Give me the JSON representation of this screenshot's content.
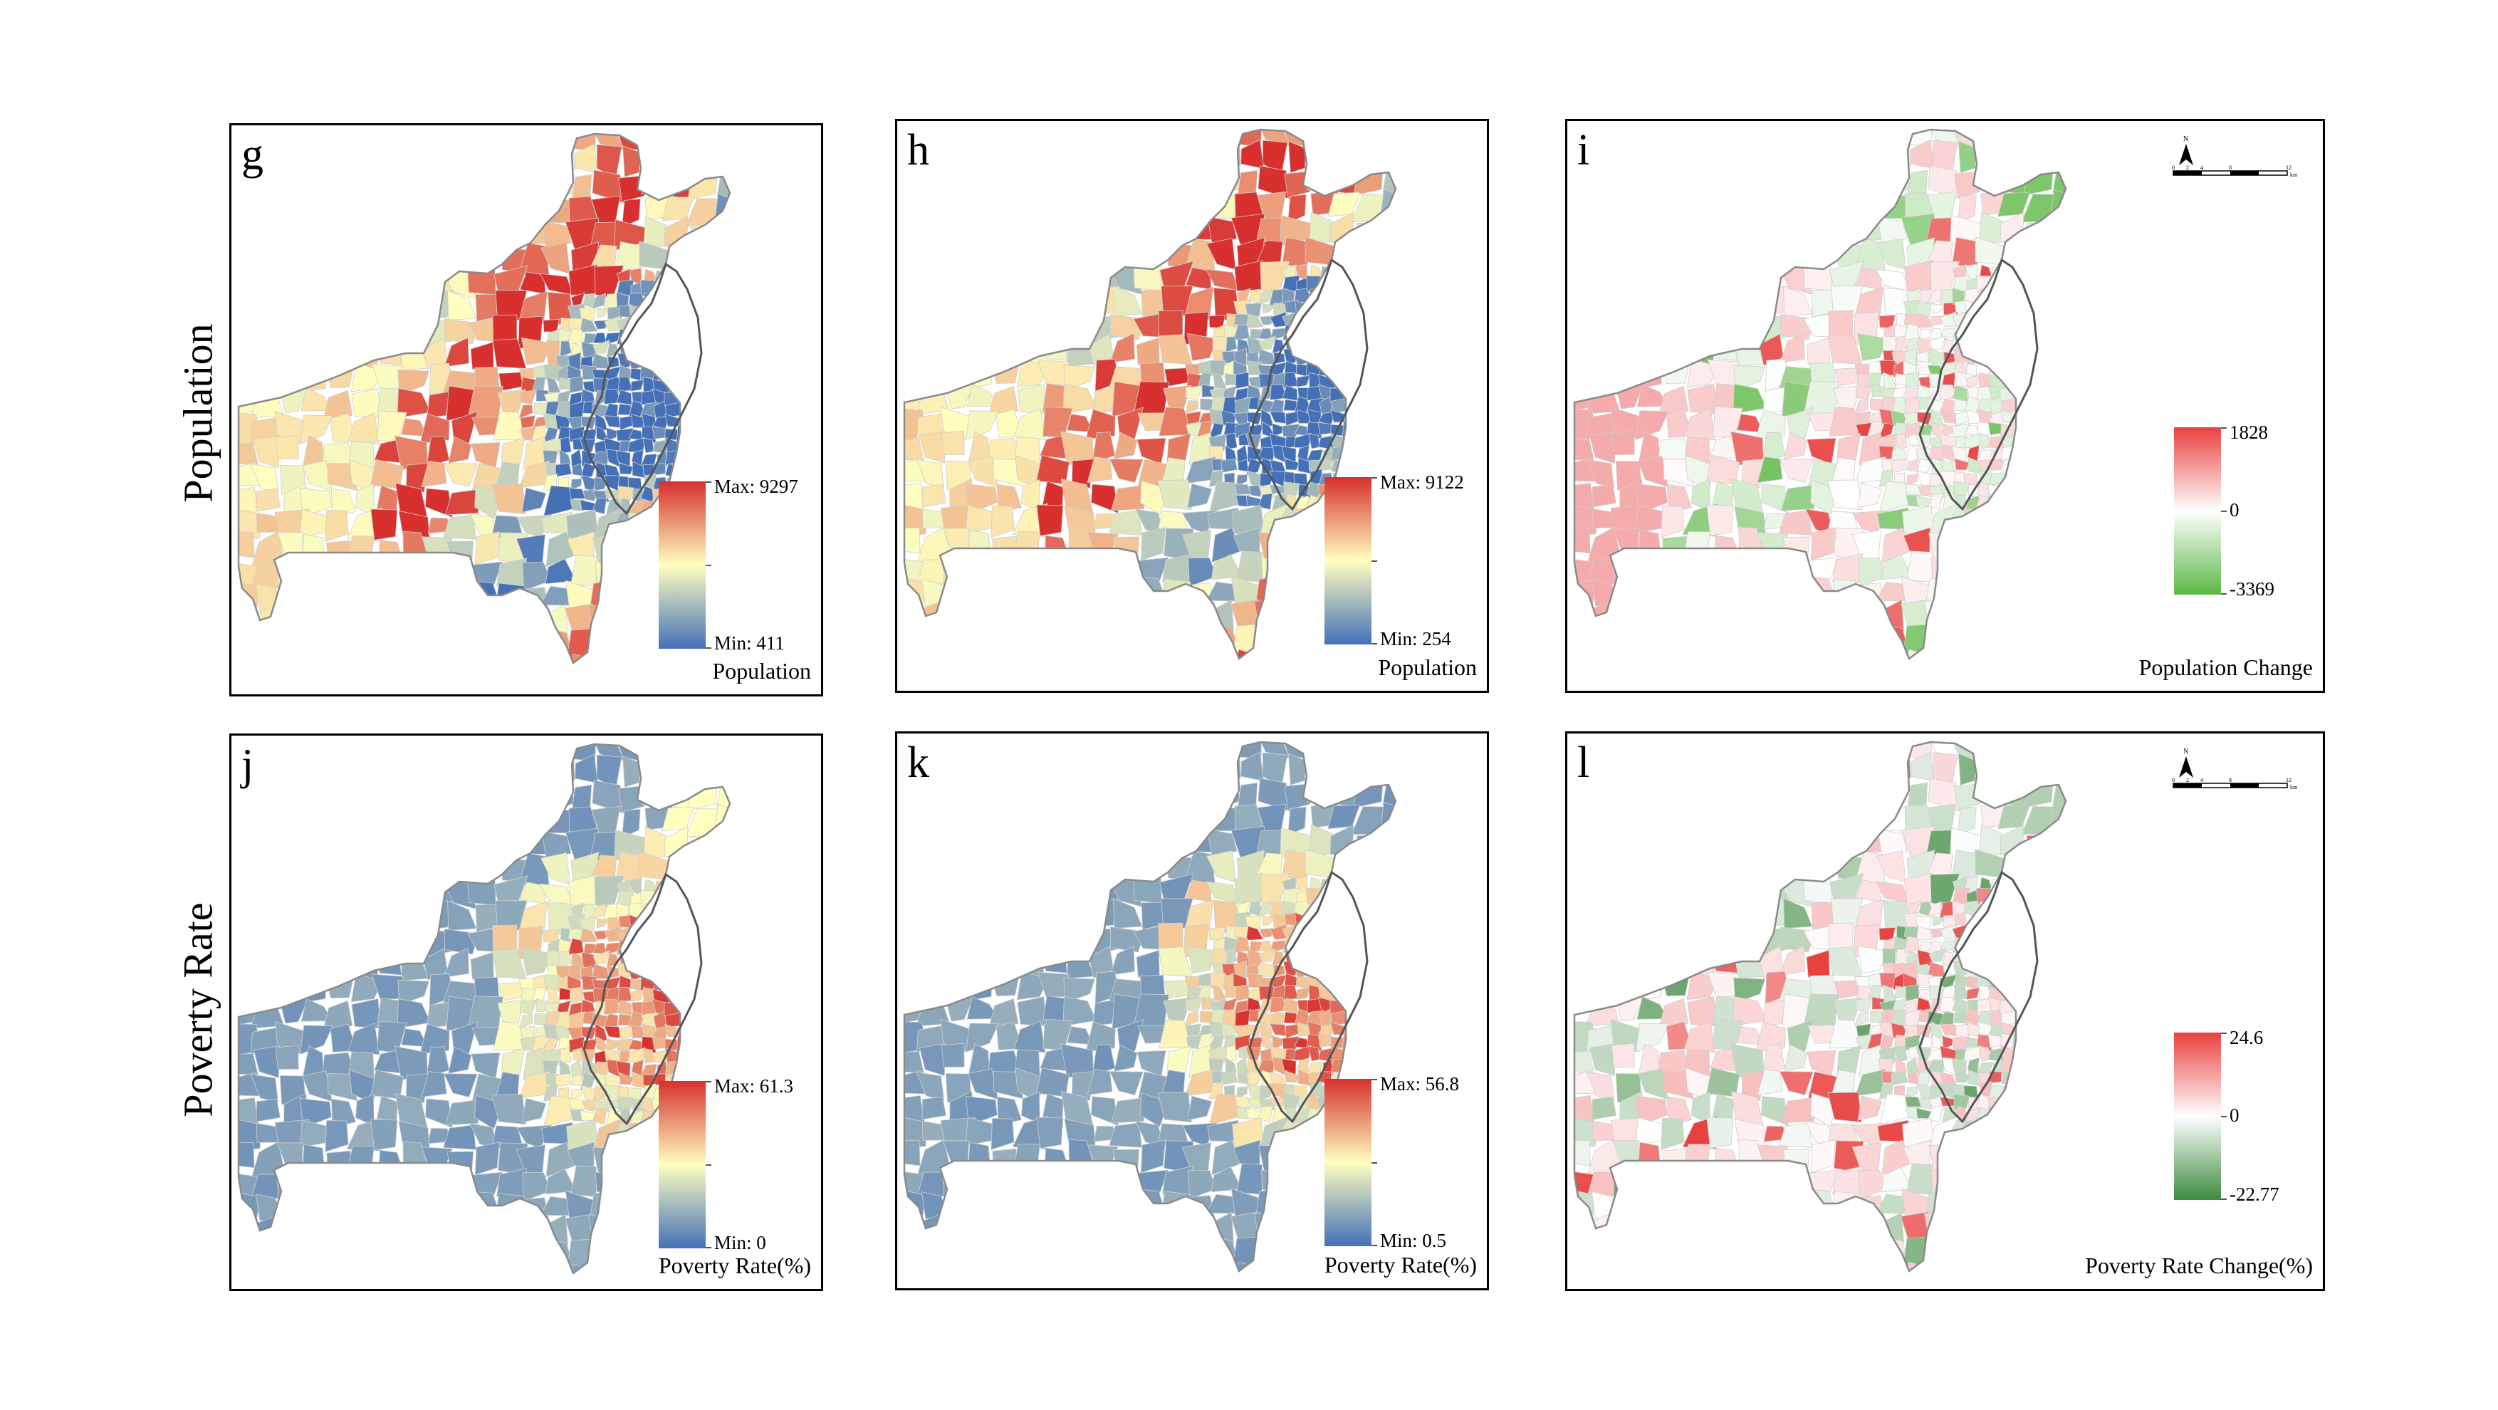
{
  "rows": [
    {
      "label": "Population"
    },
    {
      "label": "Poverty Rate"
    }
  ],
  "panels": [
    {
      "letter": "g",
      "legend_title": "Population",
      "legend_type": "diverging_rdylbu",
      "max_label": "Max: 9297",
      "min_label": "Min: 411",
      "max": 9297,
      "min": 411,
      "north_arrow": false
    },
    {
      "letter": "h",
      "legend_title": "Population",
      "legend_type": "diverging_rdylbu",
      "max_label": "Max: 9122",
      "min_label": "Min: 254",
      "max": 9122,
      "min": 254,
      "north_arrow": false
    },
    {
      "letter": "i",
      "legend_title": "Population Change",
      "legend_type": "diverging_redgreen",
      "max_label": "1828",
      "mid_label": "0",
      "min_label": "-3369",
      "max": 1828,
      "min": -3369,
      "north_arrow": true
    },
    {
      "letter": "j",
      "legend_title": "Poverty Rate(%)",
      "legend_type": "diverging_rdylbu",
      "max_label": "Max: 61.3",
      "min_label": "Min: 0",
      "max": 61.3,
      "min": 0,
      "north_arrow": false
    },
    {
      "letter": "k",
      "legend_title": "Poverty Rate(%)",
      "legend_type": "diverging_rdylbu",
      "max_label": "Max: 56.8",
      "min_label": "Min: 0.5",
      "max": 56.8,
      "min": 0.5,
      "north_arrow": false
    },
    {
      "letter": "l",
      "legend_title": "Poverty Rate Change(%)",
      "legend_type": "diverging_redgreen",
      "max_label": "24.6",
      "mid_label": "0",
      "min_label": "-22.77",
      "max": 24.6,
      "min": -22.77,
      "north_arrow": true
    }
  ],
  "north_arrow": {
    "label": "N",
    "scale_labels": [
      "0",
      "2",
      "4",
      "8",
      "12"
    ],
    "unit": "km"
  },
  "colors": {
    "high": "#d7302e",
    "mid": "#ffffbf",
    "low": "#4470b8",
    "pos": "#e8413f",
    "neutral": "#ffffff",
    "neg": "#5cb845",
    "neg_dark": "#3d8a3d",
    "outline": "#8a8a8a",
    "city": "#555555"
  }
}
